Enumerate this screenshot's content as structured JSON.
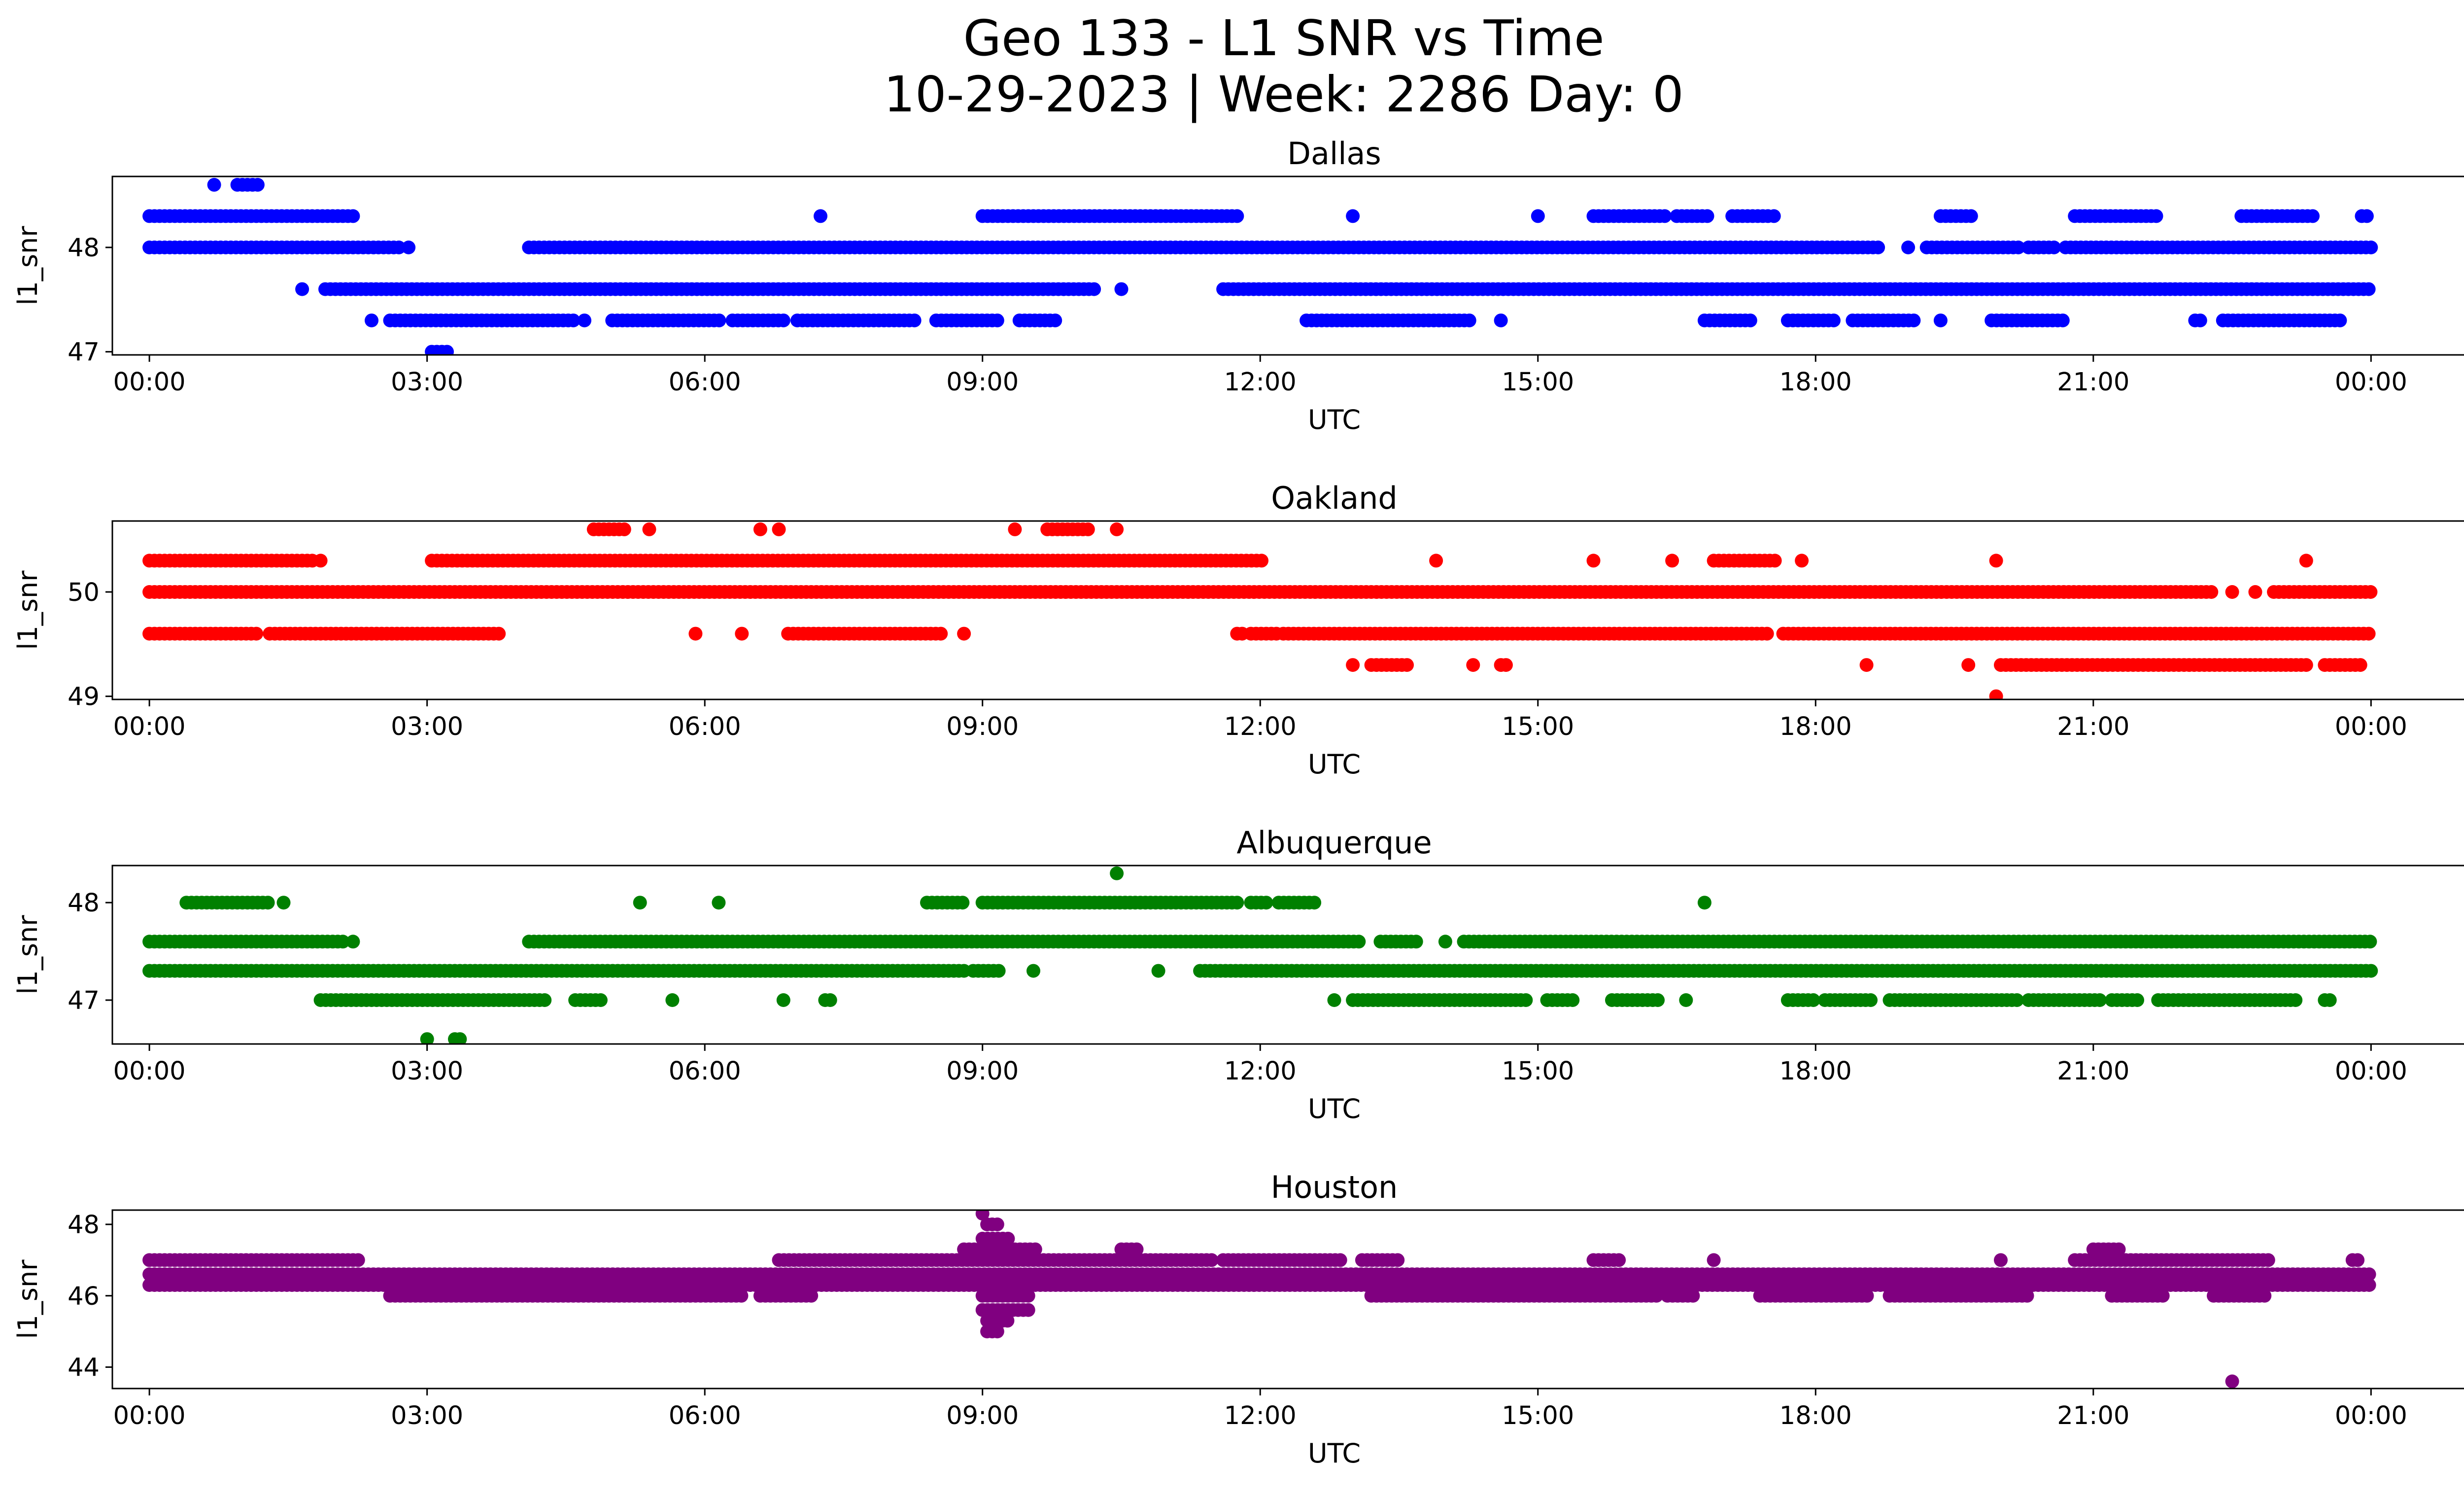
{
  "figure": {
    "title_line1": "Geo 133 - L1 SNR vs Time",
    "title_line2": "10-29-2023 | Week: 2286 Day: 0"
  },
  "chart_data": [
    {
      "type": "scatter",
      "title": "Dallas",
      "xlabel": "UTC",
      "ylabel": "l1_snr",
      "color": "#0000ff",
      "xlim_hours": [
        -0.4,
        26.0
      ],
      "ylim": [
        46.97,
        48.68
      ],
      "x_tick_labels": [
        "00:00",
        "03:00",
        "06:00",
        "09:00",
        "12:00",
        "15:00",
        "18:00",
        "21:00",
        "00:00"
      ],
      "y_ticks": [
        47,
        48
      ],
      "series": [
        {
          "y": 48.6,
          "intervals": [
            [
              0.7,
              0.72
            ],
            [
              0.95,
              1.2
            ]
          ]
        },
        {
          "y": 48.3,
          "intervals": [
            [
              0,
              2.2
            ],
            [
              7.25,
              7.27
            ],
            [
              9.0,
              11.75
            ],
            [
              13.0,
              13.02
            ],
            [
              15.0,
              15.02
            ],
            [
              15.6,
              16.4
            ],
            [
              16.5,
              16.85
            ],
            [
              17.1,
              17.52
            ],
            [
              17.55,
              17.6
            ],
            [
              19.35,
              19.7
            ],
            [
              20.8,
              21.7
            ],
            [
              22.6,
              23.4
            ],
            [
              23.9,
              24.0
            ]
          ]
        },
        {
          "y": 48.0,
          "intervals": [
            [
              0,
              2.7
            ],
            [
              2.8,
              2.82
            ],
            [
              4.1,
              18.7
            ],
            [
              19.0,
              19.02
            ],
            [
              19.2,
              20.2
            ],
            [
              20.3,
              20.6
            ],
            [
              20.7,
              24.0
            ]
          ]
        },
        {
          "y": 47.6,
          "intervals": [
            [
              1.65,
              1.67
            ],
            [
              1.9,
              10.25
            ],
            [
              10.5,
              10.52
            ],
            [
              11.6,
              24.0
            ]
          ]
        },
        {
          "y": 47.3,
          "intervals": [
            [
              2.4,
              2.42
            ],
            [
              2.6,
              4.6
            ],
            [
              4.7,
              4.72
            ],
            [
              5.0,
              6.2
            ],
            [
              6.3,
              6.9
            ],
            [
              7.0,
              8.3
            ],
            [
              8.5,
              9.2
            ],
            [
              9.4,
              9.8
            ],
            [
              12.5,
              14.3
            ],
            [
              14.6,
              14.62
            ],
            [
              16.8,
              17.3
            ],
            [
              17.7,
              18.2
            ],
            [
              18.4,
              19.1
            ],
            [
              19.35,
              19.37
            ],
            [
              19.9,
              20.7
            ],
            [
              22.1,
              22.2
            ],
            [
              22.4,
              23.7
            ]
          ]
        },
        {
          "y": 47.0,
          "intervals": [
            [
              3.05,
              3.25
            ]
          ]
        }
      ]
    },
    {
      "type": "scatter",
      "title": "Oakland",
      "xlabel": "UTC",
      "ylabel": "l1_snr",
      "color": "#ff0000",
      "xlim_hours": [
        -0.4,
        26.0
      ],
      "ylim": [
        48.97,
        50.68
      ],
      "x_tick_labels": [
        "00:00",
        "03:00",
        "06:00",
        "09:00",
        "12:00",
        "15:00",
        "18:00",
        "21:00",
        "00:00"
      ],
      "y_ticks": [
        49,
        50
      ],
      "series": [
        {
          "y": 50.6,
          "intervals": [
            [
              4.8,
              5.15
            ],
            [
              5.4,
              5.45
            ],
            [
              6.6,
              6.65
            ],
            [
              6.8,
              6.85
            ],
            [
              9.35,
              9.37
            ],
            [
              9.7,
              10.15
            ],
            [
              10.45,
              10.47
            ]
          ]
        },
        {
          "y": 50.3,
          "intervals": [
            [
              0,
              1.8
            ],
            [
              1.85,
              1.87
            ],
            [
              3.05,
              12.05
            ],
            [
              13.9,
              13.92
            ],
            [
              15.6,
              15.62
            ],
            [
              16.45,
              16.5
            ],
            [
              16.9,
              17.6
            ],
            [
              17.85,
              17.87
            ],
            [
              19.95,
              19.97
            ],
            [
              23.3,
              23.32
            ]
          ]
        },
        {
          "y": 50.0,
          "intervals": [
            [
              0,
              22.3
            ],
            [
              22.5,
              22.52
            ],
            [
              22.75,
              22.8
            ],
            [
              22.95,
              24.0
            ]
          ]
        },
        {
          "y": 49.6,
          "intervals": [
            [
              0,
              1.2
            ],
            [
              1.3,
              3.8
            ],
            [
              5.9,
              5.92
            ],
            [
              6.4,
              6.42
            ],
            [
              6.9,
              8.6
            ],
            [
              8.8,
              8.82
            ],
            [
              11.75,
              11.85
            ],
            [
              11.9,
              12.2
            ],
            [
              12.25,
              17.5
            ],
            [
              17.65,
              24.0
            ]
          ]
        },
        {
          "y": 49.3,
          "intervals": [
            [
              13.0,
              13.02
            ],
            [
              13.2,
              13.6
            ],
            [
              14.3,
              14.32
            ],
            [
              14.6,
              14.7
            ],
            [
              18.55,
              18.57
            ],
            [
              19.65,
              19.7
            ],
            [
              20.0,
              23.3
            ],
            [
              23.5,
              23.9
            ]
          ]
        },
        {
          "y": 49.0,
          "intervals": [
            [
              19.95,
              19.97
            ]
          ]
        }
      ]
    },
    {
      "type": "scatter",
      "title": "Albuquerque",
      "xlabel": "UTC",
      "ylabel": "l1_snr",
      "color": "#008000",
      "xlim_hours": [
        -0.4,
        26.0
      ],
      "ylim": [
        46.55,
        48.38
      ],
      "x_tick_labels": [
        "00:00",
        "03:00",
        "06:00",
        "09:00",
        "12:00",
        "15:00",
        "18:00",
        "21:00",
        "00:00"
      ],
      "y_ticks": [
        47,
        48
      ],
      "series": [
        {
          "y": 48.3,
          "intervals": [
            [
              10.45,
              10.47
            ]
          ]
        },
        {
          "y": 48.0,
          "intervals": [
            [
              0.4,
              1.3
            ],
            [
              1.45,
              1.47
            ],
            [
              5.3,
              5.32
            ],
            [
              6.15,
              6.17
            ],
            [
              8.4,
              8.8
            ],
            [
              9.0,
              11.8
            ],
            [
              11.9,
              12.1
            ],
            [
              12.2,
              12.6
            ],
            [
              16.8,
              16.82
            ]
          ]
        },
        {
          "y": 47.6,
          "intervals": [
            [
              0,
              2.1
            ],
            [
              2.2,
              2.25
            ],
            [
              4.1,
              13.1
            ],
            [
              13.3,
              13.7
            ],
            [
              14.0,
              14.02
            ],
            [
              14.2,
              24.0
            ]
          ]
        },
        {
          "y": 47.3,
          "intervals": [
            [
              0,
              8.8
            ],
            [
              8.9,
              9.2
            ],
            [
              9.55,
              9.57
            ],
            [
              10.9,
              10.92
            ],
            [
              11.35,
              24.0
            ]
          ]
        },
        {
          "y": 47.0,
          "intervals": [
            [
              1.85,
              4.3
            ],
            [
              4.6,
              4.9
            ],
            [
              5.65,
              5.67
            ],
            [
              6.85,
              6.87
            ],
            [
              7.3,
              7.4
            ],
            [
              12.8,
              12.82
            ],
            [
              13.0,
              14.9
            ],
            [
              15.1,
              15.4
            ],
            [
              15.8,
              16.3
            ],
            [
              16.6,
              16.62
            ],
            [
              17.7,
              18.0
            ],
            [
              18.1,
              18.6
            ],
            [
              18.8,
              20.2
            ],
            [
              20.3,
              21.1
            ],
            [
              21.2,
              21.5
            ],
            [
              21.7,
              23.2
            ],
            [
              23.5,
              23.6
            ]
          ]
        },
        {
          "y": 46.6,
          "intervals": [
            [
              3.0,
              3.02
            ],
            [
              3.3,
              3.4
            ]
          ]
        }
      ]
    },
    {
      "type": "scatter",
      "title": "Houston",
      "xlabel": "UTC",
      "ylabel": "l1_snr",
      "color": "#800080",
      "xlim_hours": [
        -0.4,
        26.0
      ],
      "ylim": [
        43.4,
        48.4
      ],
      "x_tick_labels": [
        "00:00",
        "03:00",
        "06:00",
        "09:00",
        "12:00",
        "15:00",
        "18:00",
        "21:00",
        "00:00"
      ],
      "y_ticks": [
        44,
        46,
        48
      ],
      "series": [
        {
          "y": 48.3,
          "intervals": [
            [
              9.0,
              9.02
            ]
          ]
        },
        {
          "y": 48.0,
          "intervals": [
            [
              9.05,
              9.2
            ]
          ]
        },
        {
          "y": 47.6,
          "intervals": [
            [
              9.0,
              9.3
            ]
          ]
        },
        {
          "y": 47.3,
          "intervals": [
            [
              8.8,
              9.6
            ],
            [
              10.5,
              10.7
            ],
            [
              21.0,
              21.3
            ]
          ]
        },
        {
          "y": 47.0,
          "intervals": [
            [
              0,
              2.3
            ],
            [
              6.8,
              11.5
            ],
            [
              11.6,
              12.9
            ],
            [
              13.1,
              13.5
            ],
            [
              15.6,
              15.9
            ],
            [
              16.9,
              16.92
            ],
            [
              20.0,
              20.02
            ],
            [
              20.8,
              22.9
            ],
            [
              23.8,
              23.9
            ]
          ]
        },
        {
          "y": 46.6,
          "intervals": [
            [
              0,
              24.0
            ]
          ]
        },
        {
          "y": 46.3,
          "intervals": [
            [
              0,
              24.0
            ]
          ]
        },
        {
          "y": 46.0,
          "intervals": [
            [
              2.6,
              6.4
            ],
            [
              6.6,
              7.2
            ],
            [
              9.0,
              9.5
            ],
            [
              13.2,
              16.3
            ],
            [
              16.4,
              16.7
            ],
            [
              17.4,
              18.6
            ],
            [
              18.8,
              20.3
            ],
            [
              21.2,
              21.8
            ],
            [
              22.3,
              22.9
            ]
          ]
        },
        {
          "y": 45.6,
          "intervals": [
            [
              9.0,
              9.5
            ]
          ]
        },
        {
          "y": 45.3,
          "intervals": [
            [
              9.05,
              9.3
            ]
          ]
        },
        {
          "y": 45.0,
          "intervals": [
            [
              9.05,
              9.2
            ]
          ]
        },
        {
          "y": 43.6,
          "intervals": [
            [
              22.5,
              22.52
            ]
          ]
        }
      ]
    }
  ]
}
